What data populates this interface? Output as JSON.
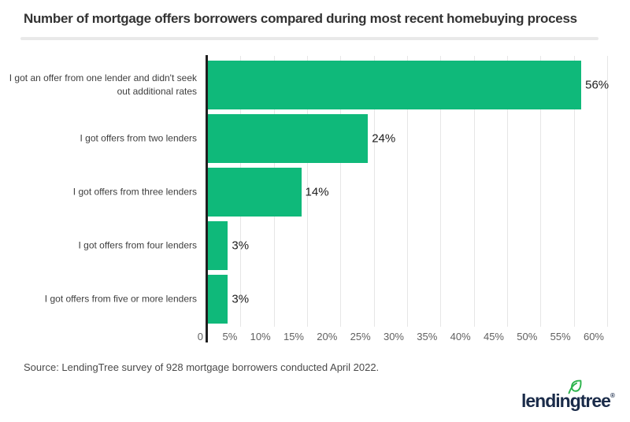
{
  "header": {
    "title": "Number of mortgage offers borrowers compared during most recent homebuying process"
  },
  "chart_data": {
    "type": "bar",
    "orientation": "horizontal",
    "title": "Number of mortgage offers borrowers compared during most recent homebuying process",
    "categories": [
      "I got an offer from one lender and didn't seek out additional rates",
      "I got offers from two lenders",
      "I got offers from three lenders",
      "I got offers from four lenders",
      "I got offers from five or more lenders"
    ],
    "values": [
      56,
      24,
      14,
      3,
      3
    ],
    "value_labels": [
      "56%",
      "24%",
      "14%",
      "3%",
      "3%"
    ],
    "xlabel": "",
    "ylabel": "",
    "xlim": [
      0,
      60
    ],
    "grid": "vertical-light",
    "legend": "none",
    "ticks": [
      {
        "value": 0,
        "label": "0"
      },
      {
        "value": 5,
        "label": "5%"
      },
      {
        "value": 10,
        "label": "10%"
      },
      {
        "value": 15,
        "label": "15%"
      },
      {
        "value": 20,
        "label": "20%"
      },
      {
        "value": 25,
        "label": "25%"
      },
      {
        "value": 30,
        "label": "30%"
      },
      {
        "value": 35,
        "label": "35%"
      },
      {
        "value": 40,
        "label": "40%"
      },
      {
        "value": 45,
        "label": "45%"
      },
      {
        "value": 50,
        "label": "50%"
      },
      {
        "value": 55,
        "label": "55%"
      },
      {
        "value": 60,
        "label": "60%"
      }
    ],
    "colors": {
      "bar": "#0fb97a",
      "axis": "#1f1f1f",
      "gridline": "#e6e6e6"
    }
  },
  "footer": {
    "source": "Source: LendingTree survey of 928 mortgage borrowers conducted April 2022.",
    "logo": {
      "text": "lendingtree",
      "registered": "®",
      "colors": {
        "wordmark": "#1a2b49",
        "leaf": "#2bb34b"
      }
    }
  }
}
